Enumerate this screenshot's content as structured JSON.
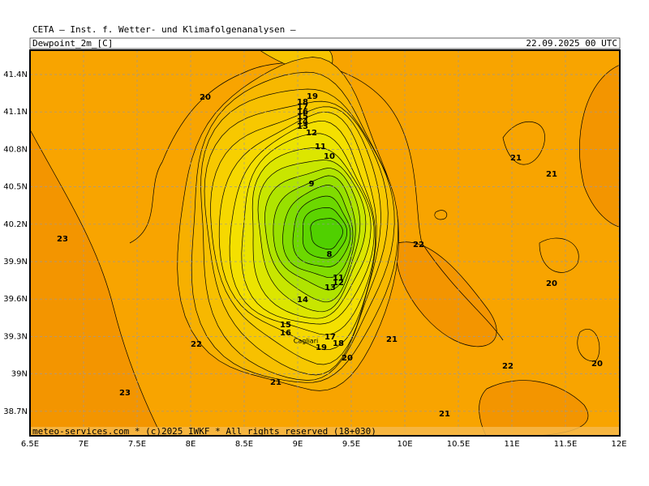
{
  "header": {
    "title": "CETA — Inst. f. Wetter- und Klimafolgenanalysen —",
    "field": "Dewpoint_2m_[C]",
    "date": "22.09.2025 00 UTC"
  },
  "footer": "meteo-services.com * (c)2025 IWKF * All rights reserved (18+030)",
  "x_axis": [
    "6.5E",
    "7E",
    "7.5E",
    "8E",
    "8.5E",
    "9E",
    "9.5E",
    "10E",
    "10.5E",
    "11E",
    "11.5E",
    "12E"
  ],
  "y_axis": [
    "41.4N",
    "41.1N",
    "40.8N",
    "40.5N",
    "40.2N",
    "39.9N",
    "39.6N",
    "39.3N",
    "39N",
    "38.7N"
  ],
  "city": "Cagliari",
  "contour_labels": [
    20,
    19,
    18,
    17,
    16,
    15,
    14,
    13,
    12,
    11,
    10,
    9,
    8,
    11,
    12,
    13,
    14,
    15,
    16,
    17,
    18,
    19,
    20,
    21,
    22,
    23,
    23,
    21,
    21,
    22,
    20,
    21,
    22,
    20,
    21
  ]
}
